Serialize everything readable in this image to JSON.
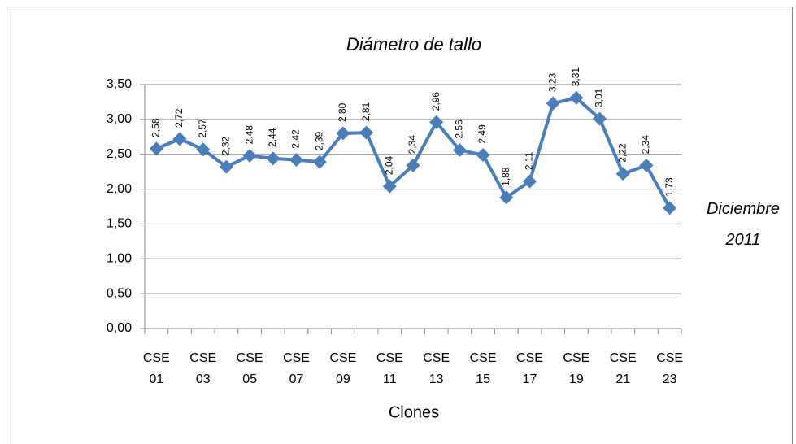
{
  "chart_data": {
    "type": "line",
    "title": "Diámetro de tallo",
    "x_label": "Clones",
    "annotation": "Diciembre 2011",
    "categories": [
      "CSE 01",
      null,
      "CSE 03",
      null,
      "CSE 05",
      null,
      "CSE 07",
      null,
      "CSE 09",
      null,
      "CSE 11",
      null,
      "CSE 13",
      null,
      "CSE 15",
      null,
      "CSE 17",
      null,
      "CSE 19",
      null,
      "CSE 21",
      null,
      "CSE 23"
    ],
    "values": [
      2.58,
      2.72,
      2.57,
      2.32,
      2.48,
      2.44,
      2.42,
      2.39,
      2.8,
      2.81,
      2.04,
      2.34,
      2.96,
      2.56,
      2.49,
      1.88,
      2.11,
      3.23,
      3.31,
      3.01,
      2.22,
      2.34,
      1.73
    ],
    "value_labels": [
      "2,58",
      "2,72",
      "2,57",
      "2,32",
      "2.48",
      "2,44",
      "2.42",
      "2,39",
      "2,80",
      "2,81",
      "2,04",
      "2,34",
      "2,96",
      "2.56",
      "2,49",
      "1,88",
      "2,11",
      "3,23",
      "3,31",
      "3,01",
      "2,22",
      "2,34",
      "1.73"
    ],
    "color": "#4a7ebb",
    "ylim": [
      0,
      3.5
    ],
    "yticks": [
      {
        "value": 0,
        "label": "0,00"
      },
      {
        "value": 0.5,
        "label": "0,50"
      },
      {
        "value": 1,
        "label": "1,00"
      },
      {
        "value": 1.5,
        "label": "1,50"
      },
      {
        "value": 2,
        "label": "2,00"
      },
      {
        "value": 2.5,
        "label": "2,50"
      },
      {
        "value": 3,
        "label": "3,00"
      },
      {
        "value": 3.5,
        "label": "3,50"
      }
    ],
    "grid": true
  }
}
